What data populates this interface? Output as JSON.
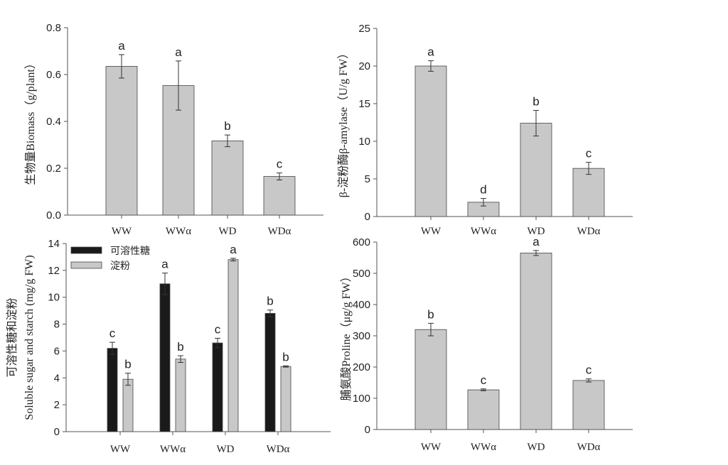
{
  "chart_data": [
    {
      "type": "bar",
      "categories": [
        "WW",
        "WWα",
        "WD",
        "WDα"
      ],
      "ylabel": "生物量Biomass（g/plant）",
      "ylim": [
        0,
        0.8
      ],
      "yticks": [
        "0.0",
        "0.2",
        "0.4",
        "0.6",
        "0.8"
      ],
      "series": [
        {
          "values": [
            0.635,
            0.553,
            0.317,
            0.165
          ],
          "errors": [
            0.05,
            0.105,
            0.025,
            0.015
          ],
          "letters": [
            "a",
            "a",
            "b",
            "c"
          ],
          "color": "#c8c8c8"
        }
      ]
    },
    {
      "type": "bar",
      "categories": [
        "WW",
        "WWα",
        "WD",
        "WDα"
      ],
      "ylabel": "β-淀粉酶β-amylase（U/g FW）",
      "ylim": [
        0,
        25
      ],
      "yticks": [
        "0",
        "5",
        "10",
        "15",
        "20",
        "25"
      ],
      "series": [
        {
          "values": [
            20.0,
            1.9,
            12.4,
            6.4
          ],
          "errors": [
            0.7,
            0.5,
            1.7,
            0.8
          ],
          "letters": [
            "a",
            "d",
            "b",
            "c"
          ],
          "color": "#c8c8c8"
        }
      ]
    },
    {
      "type": "bar",
      "categories": [
        "WW",
        "WWα",
        "WD",
        "WDα"
      ],
      "ylabel": "可溶性糖和淀粉",
      "ylabel2": "Soluble sugar and starch (mg/g FW)",
      "ylim": [
        0,
        14
      ],
      "yticks": [
        "0",
        "2",
        "4",
        "6",
        "8",
        "10",
        "12",
        "14"
      ],
      "legend": "top-left",
      "series": [
        {
          "name": "可溶性糖",
          "values": [
            6.2,
            11.0,
            6.6,
            8.8
          ],
          "errors": [
            0.45,
            0.8,
            0.35,
            0.25
          ],
          "letters": [
            "c",
            "a",
            "c",
            "b"
          ],
          "color": "#1a1a1a"
        },
        {
          "name": "淀粉",
          "values": [
            3.9,
            5.4,
            12.8,
            4.85
          ],
          "errors": [
            0.45,
            0.25,
            0.1,
            0.05
          ],
          "letters": [
            "b",
            "b",
            "a",
            "b"
          ],
          "color": "#c8c8c8"
        }
      ]
    },
    {
      "type": "bar",
      "categories": [
        "WW",
        "WWα",
        "WD",
        "WDα"
      ],
      "ylabel": "脯氨酸Proline（μg/g FW）",
      "ylim": [
        0,
        600
      ],
      "yticks": [
        "0",
        "100",
        "200",
        "300",
        "400",
        "500",
        "600"
      ],
      "series": [
        {
          "values": [
            320,
            127,
            565,
            157
          ],
          "errors": [
            20,
            3,
            8,
            5
          ],
          "letters": [
            "b",
            "c",
            "a",
            "c"
          ],
          "color": "#c8c8c8"
        }
      ]
    }
  ]
}
